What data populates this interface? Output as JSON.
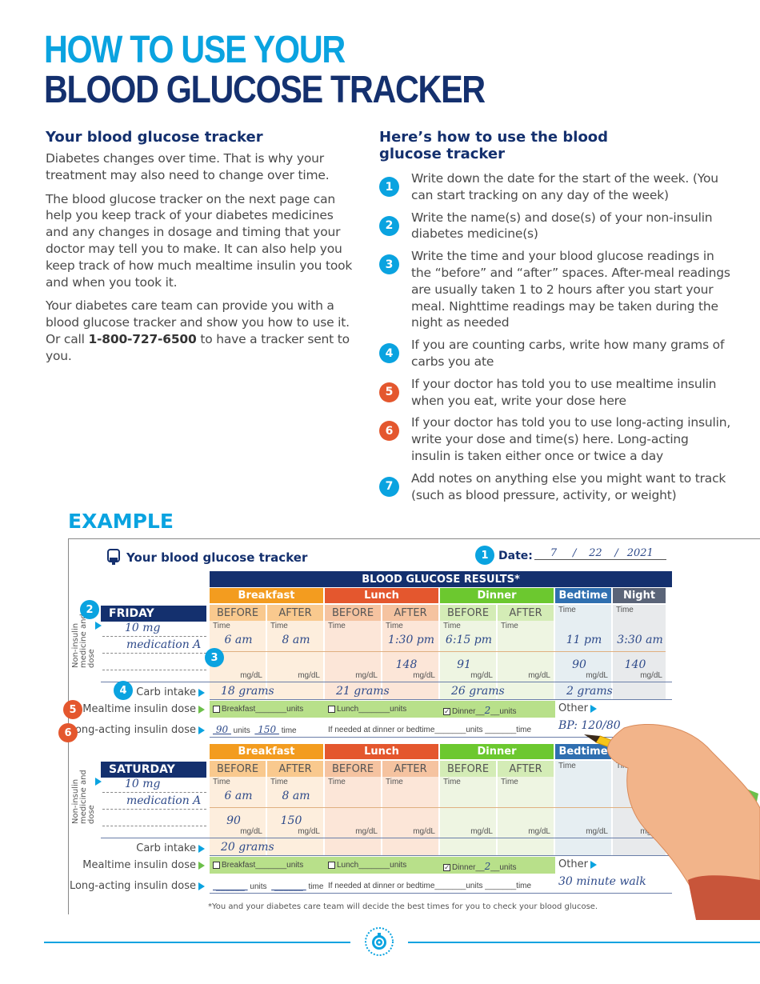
{
  "title": {
    "line1": "HOW TO USE YOUR",
    "line2": "BLOOD GLUCOSE TRACKER"
  },
  "left": {
    "heading": "Your blood glucose tracker",
    "p1": "Diabetes changes over time. That is why your treatment may also need to change over time.",
    "p2": "The blood glucose tracker on the next page can help you keep track of your diabetes medicines and any changes in dosage and timing that your doctor may tell you to make. It can also help you keep track of how much mealtime insulin you took and when you took it.",
    "p3_before": "Your diabetes care team can provide you with a blood glucose tracker and show you how to use it. Or call ",
    "p3_phone": "1-800-727-6500",
    "p3_after": " to have a tracker sent to you."
  },
  "right": {
    "heading": "Here’s how to use the blood glucose tracker",
    "steps": [
      {
        "num": "1",
        "color": "blue",
        "text": "Write down the date for the start of the week. (You can start tracking on any day of the week)"
      },
      {
        "num": "2",
        "color": "blue",
        "text": "Write the name(s) and dose(s) of your non-insulin diabetes medicine(s)"
      },
      {
        "num": "3",
        "color": "blue",
        "text": "Write the time and your blood glucose readings in the “before” and “after” spaces. After-meal readings are usually taken 1 to 2 hours after you start your meal. Nighttime readings may be taken during the night as needed"
      },
      {
        "num": "4",
        "color": "blue",
        "text": "If you are counting carbs, write how many grams of carbs you ate"
      },
      {
        "num": "5",
        "color": "orange",
        "text": "If your doctor has told you to use mealtime insulin when you eat, write your dose here"
      },
      {
        "num": "6",
        "color": "orange",
        "text": "If your doctor has told you to use long-acting insulin, write your dose and time(s) here. Long-acting insulin is taken either once or twice a day"
      },
      {
        "num": "7",
        "color": "blue",
        "text": "Add notes on anything else you might want to track (such as blood pressure, activity, or weight)"
      }
    ]
  },
  "example": {
    "label": "EXAMPLE",
    "tracker_title": "Your blood glucose tracker",
    "date_label": "Date:",
    "date": {
      "month": "7",
      "day": "22",
      "year": "2021"
    },
    "results_header": "BLOOD GLUCOSE RESULTS*",
    "meals": [
      "Breakfast",
      "Lunch",
      "Dinner"
    ],
    "bedtime": "Bedtime",
    "night": "Night",
    "before": "BEFORE",
    "after": "AFTER",
    "time": "Time",
    "unit": "mg/dL",
    "side_label": "Non-insulin medicine and dose",
    "carb_label": "Carb intake",
    "mealtime_label": "Mealtime insulin dose",
    "longacting_label": "Long-acting insulin dose",
    "other_label": "Other",
    "breakfast_units": "Breakfast_______units",
    "lunch_units": "Lunch_______units",
    "dinner_prefix": "Dinner",
    "units": "units",
    "time_word": "time",
    "if_needed": "If needed at dinner or bedtime_______units _______time",
    "friday": {
      "day": "FRIDAY",
      "med1": "10 mg",
      "med2": "medication A",
      "times": [
        "6 am",
        "8 am",
        "",
        "1:30 pm",
        "6:15 pm",
        "",
        "11 pm",
        "3:30 am"
      ],
      "readings": [
        "",
        "",
        "",
        "148",
        "91",
        "",
        "90",
        "140"
      ],
      "carbs": [
        "18 grams",
        "21 grams",
        "26 grams",
        "2 grams"
      ],
      "dinner_units": "2",
      "long_units": "90",
      "long_time": "150",
      "other": "BP: 120/80"
    },
    "saturday": {
      "day": "SATURDAY",
      "med1": "10 mg",
      "med2": "medication A",
      "times": [
        "6 am",
        "8 am",
        "",
        "",
        "",
        "",
        "",
        ""
      ],
      "readings": [
        "90",
        "150",
        "",
        "",
        "",
        "",
        "",
        ""
      ],
      "carbs": [
        "20 grams",
        "",
        "",
        ""
      ],
      "dinner_units": "2",
      "other": "30 minute walk"
    },
    "footnote": "*You and your diabetes care team will decide the best times for you to check your blood glucose."
  },
  "colors": {
    "accent": "#0aa3e0",
    "navy": "#14306e",
    "breakfast": "#f39c1f",
    "lunch": "#e4572e",
    "dinner": "#6cc82f",
    "bedtime": "#2f6fb0",
    "night": "#5a6478"
  }
}
